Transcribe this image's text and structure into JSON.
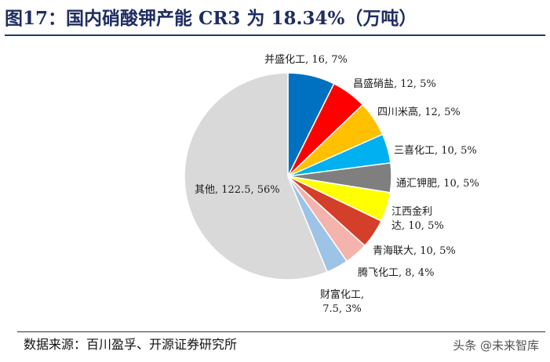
{
  "title": "图17：国内硝酸钾产能 CR3 为 18.34%（万吨）",
  "source": "数据来源：百川盈孚、开源证券研究所",
  "watermark": "头条 @未来智库",
  "chart_data": {
    "type": "pie",
    "title": "",
    "slices": [
      {
        "name": "并盛化工",
        "value": 16,
        "percent": 7,
        "label": "并盛化工, 16, 7%",
        "color": "#0070c0"
      },
      {
        "name": "昌盛硝盐",
        "value": 12,
        "percent": 5,
        "label": "昌盛硝盐, 12, 5%",
        "color": "#ff0000"
      },
      {
        "name": "四川米高",
        "value": 12,
        "percent": 5,
        "label": "四川米高, 12, 5%",
        "color": "#ffc000"
      },
      {
        "name": "三喜化工",
        "value": 10,
        "percent": 5,
        "label": "三喜化工, 10, 5%",
        "color": "#00b0f0"
      },
      {
        "name": "通汇钾肥",
        "value": 10,
        "percent": 5,
        "label": "通汇钾肥, 10, 5%",
        "color": "#7f7f7f"
      },
      {
        "name": "江西金利达",
        "value": 10,
        "percent": 5,
        "label_lines": [
          "江西金利",
          "达, 10, 5%"
        ],
        "color": "#ffff00"
      },
      {
        "name": "青海联大",
        "value": 10,
        "percent": 5,
        "label": "青海联大, 10, 5%",
        "color": "#d43f2a"
      },
      {
        "name": "腾飞化工",
        "value": 8,
        "percent": 4,
        "label": "腾飞化工, 8, 4%",
        "color": "#f4b3ac"
      },
      {
        "name": "财富化工",
        "value": 7.5,
        "percent": 3,
        "label_lines": [
          "财富化工,",
          "7.5, 3%"
        ],
        "color": "#9dc3e6"
      },
      {
        "name": "其他",
        "value": 122.5,
        "percent": 56,
        "label": "其他, 122.5, 56%",
        "color": "#d9d9d9"
      }
    ]
  }
}
